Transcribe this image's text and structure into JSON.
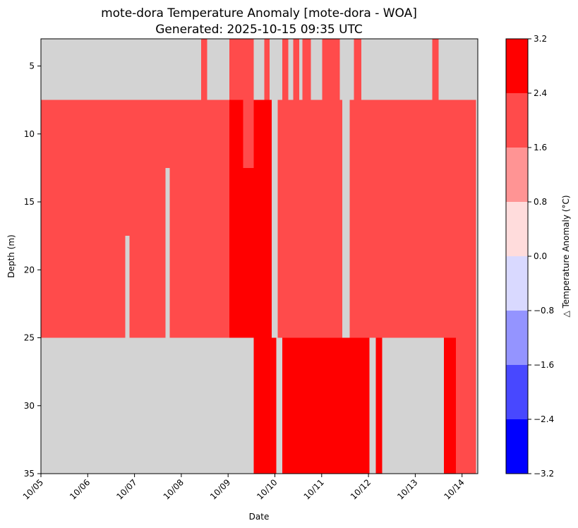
{
  "chart_data": {
    "type": "heatmap",
    "title": "mote-dora Temperature Anomaly [mote-dora - WOA]",
    "subtitle": "Generated: 2025-10-15 09:35 UTC",
    "xlabel": "Date",
    "ylabel": "Depth (m)",
    "x_ticks": [
      "10/05",
      "10/06",
      "10/07",
      "10/08",
      "10/09",
      "10/10",
      "10/11",
      "10/12",
      "10/13",
      "10/14"
    ],
    "x_range_days": [
      0,
      9.3
    ],
    "y_range": [
      3,
      35
    ],
    "y_inverted": true,
    "y_ticks": [
      5,
      10,
      15,
      20,
      25,
      30,
      35
    ],
    "background_color": "#d3d3d3",
    "depth_layers": [
      [
        3,
        7.5
      ],
      [
        7.5,
        12.5
      ],
      [
        12.5,
        17.5
      ],
      [
        17.5,
        25
      ],
      [
        25,
        35
      ]
    ],
    "colorbar": {
      "label": "△ Temperature Anomaly (°C)",
      "boundaries": [
        -3.2,
        -2.4,
        -1.6,
        -0.8,
        0.0,
        0.8,
        1.6,
        2.4,
        3.2
      ],
      "tick_labels": [
        "−3.2",
        "−2.4",
        "−1.6",
        "−0.8",
        "0.0",
        "0.8",
        "1.6",
        "2.4",
        "3.2"
      ],
      "colors": [
        "#0000ff",
        "#4848ff",
        "#9494ff",
        "#d9d9ff",
        "#ffdcdc",
        "#ff9494",
        "#ff4b4b",
        "#ff0000"
      ]
    },
    "cells": [
      {
        "x0": 3.42,
        "x1": 3.55,
        "layer": 0,
        "value": 2.0
      },
      {
        "x0": 4.03,
        "x1": 4.55,
        "layer": 0,
        "value": 2.0
      },
      {
        "x0": 4.77,
        "x1": 4.89,
        "layer": 0,
        "value": 2.0
      },
      {
        "x0": 5.16,
        "x1": 5.29,
        "layer": 0,
        "value": 2.0
      },
      {
        "x0": 5.39,
        "x1": 5.52,
        "layer": 0,
        "value": 2.0
      },
      {
        "x0": 5.59,
        "x1": 5.77,
        "layer": 0,
        "value": 2.0
      },
      {
        "x0": 6.01,
        "x1": 6.39,
        "layer": 0,
        "value": 2.0
      },
      {
        "x0": 6.69,
        "x1": 6.85,
        "layer": 0,
        "value": 2.0
      },
      {
        "x0": 8.36,
        "x1": 8.5,
        "layer": 0,
        "value": 2.0
      },
      {
        "x0": 0.0,
        "x1": 4.03,
        "layer": 1,
        "value": 2.0
      },
      {
        "x0": 4.03,
        "x1": 4.32,
        "layer": 1,
        "value": 2.8
      },
      {
        "x0": 4.32,
        "x1": 4.55,
        "layer": 1,
        "value": 2.0
      },
      {
        "x0": 4.55,
        "x1": 4.93,
        "layer": 1,
        "value": 2.8
      },
      {
        "x0": 5.06,
        "x1": 6.44,
        "layer": 1,
        "value": 2.0
      },
      {
        "x0": 6.6,
        "x1": 9.3,
        "layer": 1,
        "value": 2.0
      },
      {
        "x0": 0.0,
        "x1": 2.66,
        "layer": 2,
        "value": 2.0
      },
      {
        "x0": 2.75,
        "x1": 4.03,
        "layer": 2,
        "value": 2.0
      },
      {
        "x0": 4.03,
        "x1": 4.93,
        "layer": 2,
        "value": 2.8
      },
      {
        "x0": 5.06,
        "x1": 6.44,
        "layer": 2,
        "value": 2.0
      },
      {
        "x0": 6.6,
        "x1": 9.3,
        "layer": 2,
        "value": 2.0
      },
      {
        "x0": 0.0,
        "x1": 1.8,
        "layer": 3,
        "value": 2.0
      },
      {
        "x0": 1.89,
        "x1": 2.66,
        "layer": 3,
        "value": 2.0
      },
      {
        "x0": 2.75,
        "x1": 4.03,
        "layer": 3,
        "value": 2.0
      },
      {
        "x0": 4.03,
        "x1": 4.93,
        "layer": 3,
        "value": 2.8
      },
      {
        "x0": 5.06,
        "x1": 6.44,
        "layer": 3,
        "value": 2.0
      },
      {
        "x0": 6.6,
        "x1": 9.3,
        "layer": 3,
        "value": 2.0
      },
      {
        "x0": 4.55,
        "x1": 5.03,
        "layer": 4,
        "value": 2.8
      },
      {
        "x0": 5.16,
        "x1": 7.02,
        "layer": 4,
        "value": 2.8
      },
      {
        "x0": 7.16,
        "x1": 7.29,
        "layer": 4,
        "value": 2.8
      },
      {
        "x0": 8.61,
        "x1": 8.87,
        "layer": 4,
        "value": 2.8
      },
      {
        "x0": 8.87,
        "x1": 9.3,
        "layer": 4,
        "value": 2.0
      }
    ]
  }
}
